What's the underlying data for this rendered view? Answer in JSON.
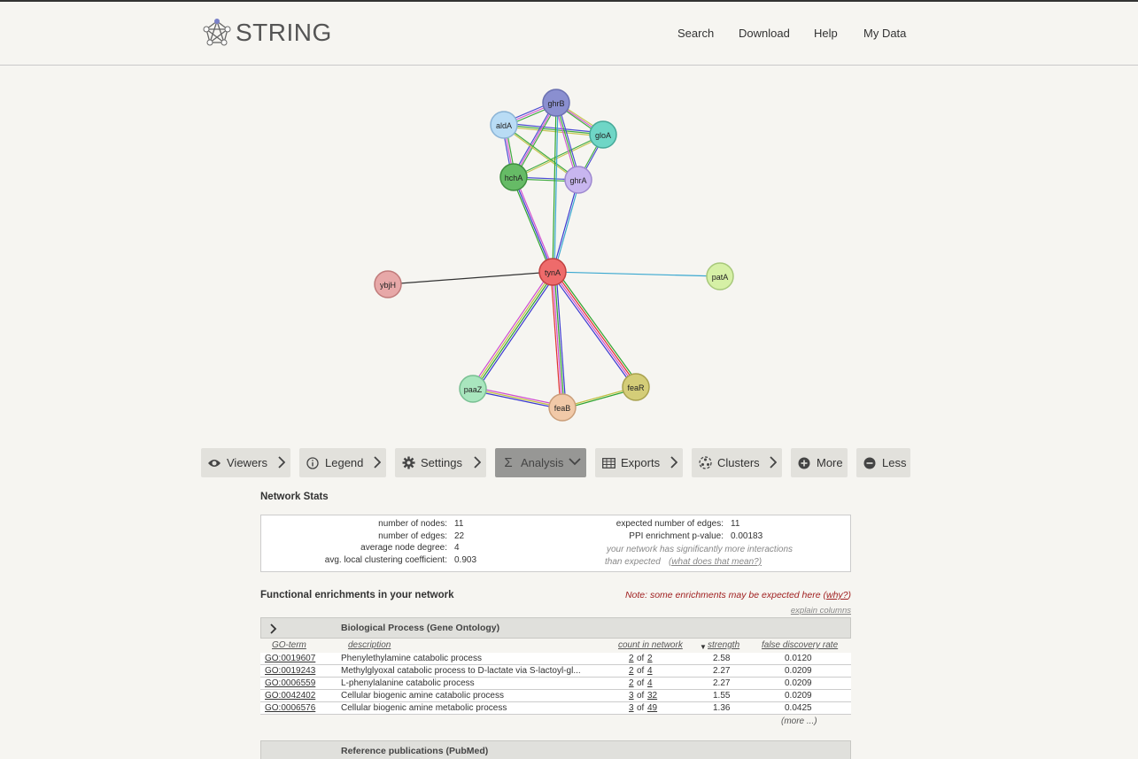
{
  "app": {
    "logo_text": "STRING"
  },
  "nav": {
    "items": [
      "Search",
      "Download",
      "Help",
      "My Data"
    ]
  },
  "network": {
    "nodes": [
      {
        "id": "ghrB",
        "label": "ghrB",
        "color": "#8a8fd0"
      },
      {
        "id": "aldA",
        "label": "aldA",
        "color": "#b9dcf5"
      },
      {
        "id": "gloA",
        "label": "gloA",
        "color": "#6fd6c6"
      },
      {
        "id": "hchA",
        "label": "hchA",
        "color": "#66bb66"
      },
      {
        "id": "ghrA",
        "label": "ghrA",
        "color": "#c8b6ef"
      },
      {
        "id": "tynA",
        "label": "tynA",
        "color": "#ee6b6b"
      },
      {
        "id": "ybjH",
        "label": "ybjH",
        "color": "#e7a8a8"
      },
      {
        "id": "patA",
        "label": "patA",
        "color": "#d6f0a6"
      },
      {
        "id": "paaZ",
        "label": "paaZ",
        "color": "#a9e6be"
      },
      {
        "id": "feaB",
        "label": "feaB",
        "color": "#f1c9a8"
      },
      {
        "id": "feaR",
        "label": "feaR",
        "color": "#d4cd78"
      }
    ]
  },
  "toolbar": {
    "buttons": [
      {
        "label": "Viewers",
        "icon": "eye-icon"
      },
      {
        "label": "Legend",
        "icon": "info-icon"
      },
      {
        "label": "Settings",
        "icon": "gear-icon"
      },
      {
        "label": "Analysis",
        "icon": "sigma-icon",
        "active": true
      },
      {
        "label": "Exports",
        "icon": "table-icon"
      },
      {
        "label": "Clusters",
        "icon": "clusters-icon"
      },
      {
        "label": "More",
        "icon": "plus-circle-icon"
      },
      {
        "label": "Less",
        "icon": "minus-circle-icon"
      }
    ]
  },
  "stats": {
    "title": "Network Stats",
    "left": [
      {
        "label": "number of nodes:",
        "value": "11"
      },
      {
        "label": "number of edges:",
        "value": "22"
      },
      {
        "label": "average node degree:",
        "value": "4"
      },
      {
        "label": "avg. local clustering coefficient:",
        "value": "0.903"
      }
    ],
    "right": [
      {
        "label": "expected number of edges:",
        "value": "11"
      },
      {
        "label": "PPI enrichment p-value:",
        "value": "0.00183"
      }
    ],
    "note_line1": "your network has significantly more interactions",
    "note_line2": "than expected",
    "note_link": "(what does that mean?)"
  },
  "enrichment": {
    "title": "Functional enrichments in your network",
    "note": "Note: some enrichments may be expected here (",
    "note_link": "why?",
    "note_end": ")",
    "explain": "explain columns",
    "bp_header": "Biological Process (Gene Ontology)",
    "columns": [
      "GO-term",
      "description",
      "count in network",
      "strength",
      "false discovery rate"
    ],
    "rows": [
      {
        "term": "GO:0019607",
        "description": "Phenylethylamine catabolic process",
        "count_a": "2",
        "count_b": "2",
        "strength": "2.58",
        "fdr": "0.0120"
      },
      {
        "term": "GO:0019243",
        "description": "Methylglyoxal catabolic process to D-lactate via S-lactoyl-gl...",
        "count_a": "2",
        "count_b": "4",
        "strength": "2.27",
        "fdr": "0.0209"
      },
      {
        "term": "GO:0006559",
        "description": "L-phenylalanine catabolic process",
        "count_a": "2",
        "count_b": "4",
        "strength": "2.27",
        "fdr": "0.0209"
      },
      {
        "term": "GO:0042402",
        "description": "Cellular biogenic amine catabolic process",
        "count_a": "3",
        "count_b": "32",
        "strength": "1.55",
        "fdr": "0.0209"
      },
      {
        "term": "GO:0006576",
        "description": "Cellular biogenic amine metabolic process",
        "count_a": "3",
        "count_b": "49",
        "strength": "1.36",
        "fdr": "0.0425"
      }
    ],
    "more": "(more ...)",
    "pubmed_header": "Reference publications (PubMed)"
  }
}
